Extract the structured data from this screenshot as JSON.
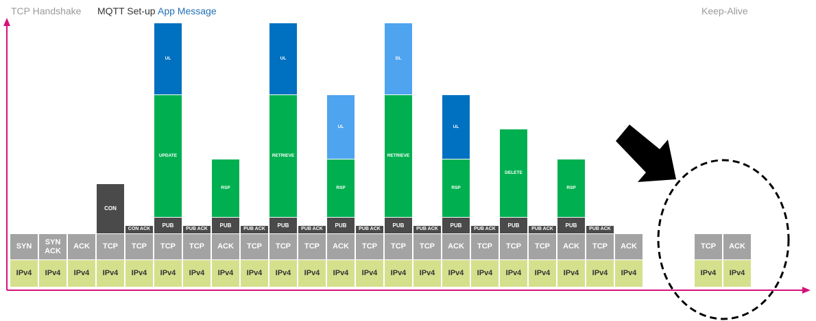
{
  "header": {
    "tcp_handshake": "TCP Handshake",
    "mqtt_setup": "MQTT Set-up",
    "app_message": "App Message",
    "keep_alive": "Keep-Alive"
  },
  "colors": {
    "axis": "#d6117a",
    "ipv4": "#d5e08d",
    "tcp": "#a3a3a3",
    "mqtt": "#4a4a4a",
    "app": "#00b050",
    "ul_dark": "#0070c0",
    "ul_light": "#4ea4ef",
    "header_gray": "#9a9a9a",
    "header_dark": "#333333",
    "header_blue": "#1f6fb5"
  },
  "packets": [
    {
      "ipv4": "IPv4",
      "tcp": "SYN"
    },
    {
      "ipv4": "IPv4",
      "tcp": "SYN ACK"
    },
    {
      "ipv4": "IPv4",
      "tcp": "ACK"
    },
    {
      "ipv4": "IPv4",
      "tcp": "TCP",
      "mqtt": "CON",
      "mqtt_size": "big"
    },
    {
      "ipv4": "IPv4",
      "tcp": "TCP",
      "mqtt": "CON ACK",
      "mqtt_size": "small"
    },
    {
      "ipv4": "IPv4",
      "tcp": "TCP",
      "mqtt": "PUB",
      "app": "UPDATE",
      "ul": "UL",
      "ul_style": "dark"
    },
    {
      "ipv4": "IPv4",
      "tcp": "TCP",
      "mqtt": "PUB ACK",
      "mqtt_size": "small"
    },
    {
      "ipv4": "IPv4",
      "tcp": "ACK",
      "mqtt": "PUB",
      "app": "RSP"
    },
    {
      "ipv4": "IPv4",
      "tcp": "TCP",
      "mqtt": "PUB ACK",
      "mqtt_size": "small"
    },
    {
      "ipv4": "IPv4",
      "tcp": "TCP",
      "mqtt": "PUB",
      "app": "RETRIEVE",
      "ul": "UL",
      "ul_style": "dark"
    },
    {
      "ipv4": "IPv4",
      "tcp": "TCP",
      "mqtt": "PUB ACK",
      "mqtt_size": "small"
    },
    {
      "ipv4": "IPv4",
      "tcp": "ACK",
      "mqtt": "PUB",
      "app": "RSP",
      "ul": "UL",
      "ul_style": "light"
    },
    {
      "ipv4": "IPv4",
      "tcp": "TCP",
      "mqtt": "PUB ACK",
      "mqtt_size": "small"
    },
    {
      "ipv4": "IPv4",
      "tcp": "TCP",
      "mqtt": "PUB",
      "app": "RETRIEVE",
      "ul": "DL",
      "ul_style": "light"
    },
    {
      "ipv4": "IPv4",
      "tcp": "TCP",
      "mqtt": "PUB ACK",
      "mqtt_size": "small"
    },
    {
      "ipv4": "IPv4",
      "tcp": "ACK",
      "mqtt": "PUB",
      "app": "RSP",
      "ul": "UL",
      "ul_style": "dark"
    },
    {
      "ipv4": "IPv4",
      "tcp": "TCP",
      "mqtt": "PUB ACK",
      "mqtt_size": "small"
    },
    {
      "ipv4": "IPv4",
      "tcp": "TCP",
      "mqtt": "PUB",
      "app": "DELETE"
    },
    {
      "ipv4": "IPv4",
      "tcp": "TCP",
      "mqtt": "PUB ACK",
      "mqtt_size": "small"
    },
    {
      "ipv4": "IPv4",
      "tcp": "ACK",
      "mqtt": "PUB",
      "app": "RSP"
    },
    {
      "ipv4": "IPv4",
      "tcp": "TCP",
      "mqtt": "PUB ACK",
      "mqtt_size": "small"
    },
    {
      "ipv4": "IPv4",
      "tcp": "ACK"
    },
    {
      "ipv4": "IPv4",
      "tcp": "TCP"
    },
    {
      "ipv4": "IPv4",
      "tcp": "ACK"
    }
  ]
}
